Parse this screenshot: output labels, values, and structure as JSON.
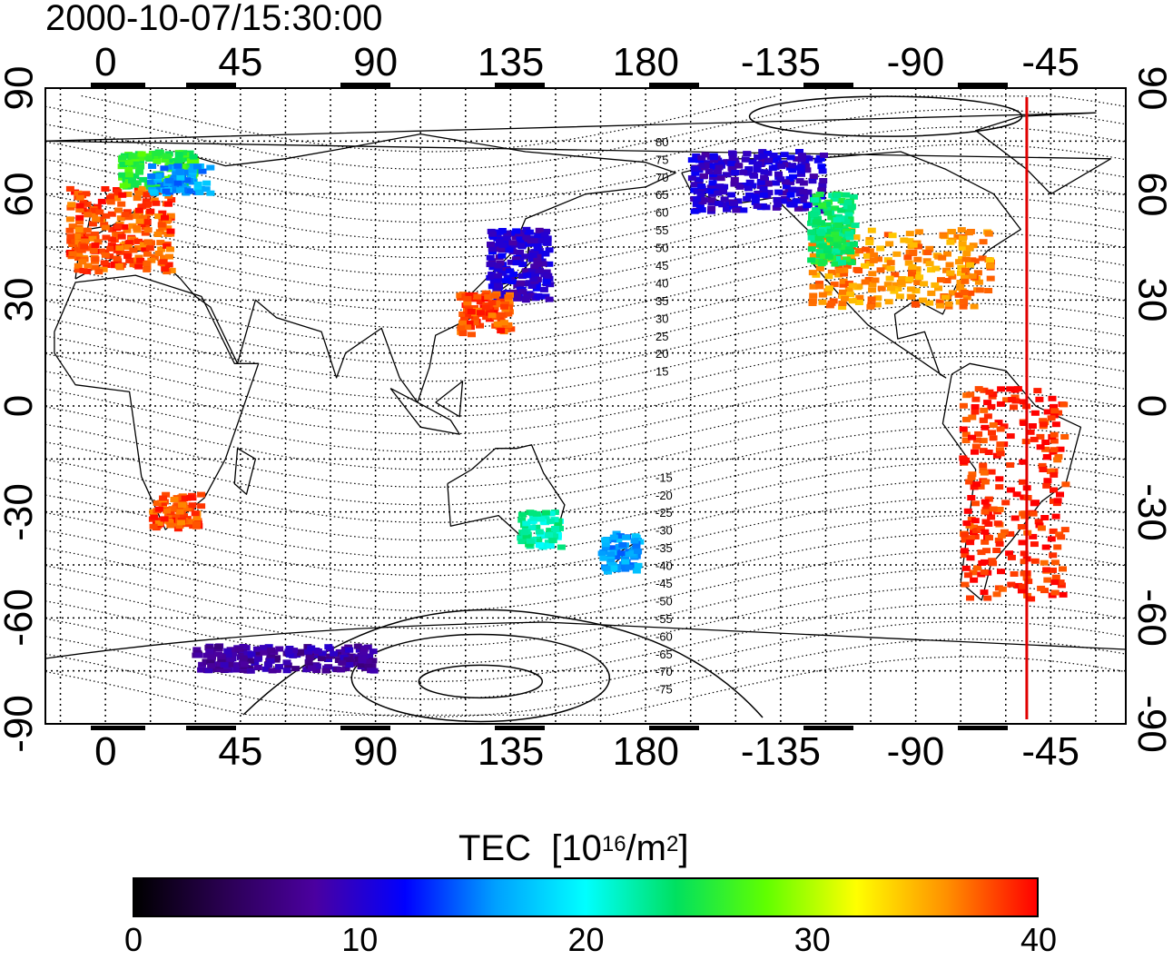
{
  "title": "2000-10-07/15:30:00",
  "lon_ticks_top": [
    "0",
    "45",
    "90",
    "135",
    "180",
    "-135",
    "-90",
    "-45"
  ],
  "lon_ticks_bottom": [
    "0",
    "45",
    "90",
    "135",
    "180",
    "-135",
    "-90",
    "-45"
  ],
  "lat_ticks_left": [
    "90",
    "60",
    "30",
    "0",
    "-30",
    "-60",
    "-90"
  ],
  "lat_ticks_right": [
    "90",
    "60",
    "30",
    "0",
    "-30",
    "-60",
    "-90"
  ],
  "magnetic_lat_labels_north": [
    "80",
    "75",
    "70",
    "65",
    "60",
    "55",
    "50",
    "45",
    "40",
    "35",
    "30",
    "25",
    "20",
    "15"
  ],
  "magnetic_lat_labels_south": [
    "-15",
    "-20",
    "-25",
    "-30",
    "-35",
    "-40",
    "-45",
    "-50",
    "-55",
    "-60",
    "-65",
    "-70",
    "-75"
  ],
  "colorbar": {
    "title": "TEC",
    "unit_base": "[10",
    "unit_exp": "16",
    "unit_mid": "/m",
    "unit_exp2": "2",
    "unit_end": "]",
    "labels": [
      "0",
      "10",
      "20",
      "30",
      "40"
    ],
    "range": [
      0,
      40
    ],
    "colormap": [
      "#000000",
      "#2a0052",
      "#4b00a0",
      "#0000ff",
      "#00a0ff",
      "#00ffff",
      "#00e060",
      "#60ff00",
      "#ffff00",
      "#ff9000",
      "#ff0000"
    ]
  },
  "colors": {
    "marker_line": "#e00000",
    "map_border": "#000000",
    "grid": "#000000"
  },
  "map_data": {
    "projection": "equirectangular",
    "lon_range": [
      -20,
      340
    ],
    "lat_range": [
      -90,
      90
    ],
    "marker_longitude": -53,
    "observations": [
      {
        "region": "western-europe",
        "lon": [
          -12,
          22
        ],
        "lat": [
          38,
          62
        ],
        "tec": 38
      },
      {
        "region": "scandinavia",
        "lon": [
          5,
          30
        ],
        "lat": [
          62,
          72
        ],
        "tec": 26
      },
      {
        "region": "northern-europe",
        "lon": [
          15,
          35
        ],
        "lat": [
          60,
          68
        ],
        "tec": 16
      },
      {
        "region": "japan",
        "lon": [
          128,
          148
        ],
        "lat": [
          30,
          50
        ],
        "tec": 10
      },
      {
        "region": "east-china",
        "lon": [
          118,
          135
        ],
        "lat": [
          20,
          32
        ],
        "tec": 38
      },
      {
        "region": "alaska-canada",
        "lon": [
          -165,
          -120
        ],
        "lat": [
          55,
          72
        ],
        "tec": 10
      },
      {
        "region": "usa",
        "lon": [
          -125,
          -65
        ],
        "lat": [
          28,
          50
        ],
        "tec": 36
      },
      {
        "region": "western-us",
        "lon": [
          -125,
          -110
        ],
        "lat": [
          40,
          60
        ],
        "tec": 24
      },
      {
        "region": "south-america",
        "lon": [
          -75,
          -40
        ],
        "lat": [
          -55,
          5
        ],
        "tec": 39
      },
      {
        "region": "south-africa",
        "lon": [
          15,
          32
        ],
        "lat": [
          -35,
          -25
        ],
        "tec": 38
      },
      {
        "region": "australia-se",
        "lon": [
          138,
          152
        ],
        "lat": [
          -40,
          -30
        ],
        "tec": 22
      },
      {
        "region": "new-zealand",
        "lon": [
          165,
          178
        ],
        "lat": [
          -47,
          -36
        ],
        "tec": 16
      },
      {
        "region": "antarctica-coast",
        "lon": [
          30,
          90
        ],
        "lat": [
          -75,
          -68
        ],
        "tec": 8
      }
    ]
  }
}
